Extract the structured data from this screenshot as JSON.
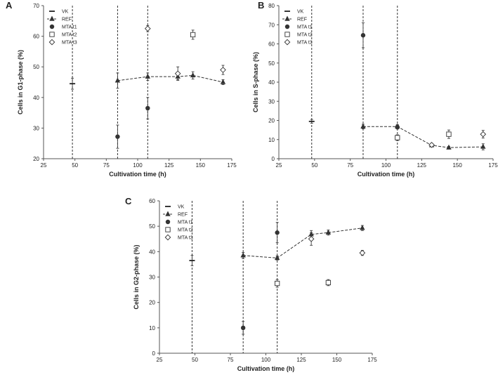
{
  "chart_data": [
    {
      "panel": "A",
      "type": "scatter",
      "xlabel": "Cultivation time (h)",
      "ylabel": "Cells in G1-phase (%)",
      "xlim": [
        25,
        175
      ],
      "ylim": [
        20,
        70
      ],
      "xticks": [
        25,
        50,
        75,
        100,
        125,
        150,
        175
      ],
      "yticks": [
        20,
        30,
        40,
        50,
        60,
        70
      ],
      "vlines": [
        48,
        84,
        108
      ],
      "legend_position": "top-left",
      "series": [
        {
          "name": "VK",
          "marker": "dash",
          "points": [
            {
              "x": 48,
              "y": 44.5,
              "err": 1.8
            }
          ]
        },
        {
          "name": "REF",
          "marker": "triangle",
          "line": true,
          "points": [
            {
              "x": 84,
              "y": 45.5,
              "err": 2.5
            },
            {
              "x": 108,
              "y": 46.8,
              "err": 1.2
            },
            {
              "x": 132,
              "y": 46.8,
              "err": 1.0
            },
            {
              "x": 144,
              "y": 47.2,
              "err": 1.2
            },
            {
              "x": 168,
              "y": 45.0,
              "err": 0.8
            }
          ]
        },
        {
          "name": "MTA t1",
          "marker": "circle",
          "points": [
            {
              "x": 84,
              "y": 27.2,
              "err": 3.8
            },
            {
              "x": 108,
              "y": 36.5,
              "err": 3.5
            }
          ]
        },
        {
          "name": "MTA t2",
          "marker": "square",
          "points": [
            {
              "x": 144,
              "y": 60.5,
              "err": 1.5
            }
          ]
        },
        {
          "name": "MTA t3",
          "marker": "diamond",
          "points": [
            {
              "x": 108,
              "y": 62.5,
              "err": 1.0
            },
            {
              "x": 132,
              "y": 47.8,
              "err": 2.2
            },
            {
              "x": 168,
              "y": 49.0,
              "err": 1.5
            }
          ]
        }
      ]
    },
    {
      "panel": "B",
      "type": "scatter",
      "xlabel": "Cultivation time (h)",
      "ylabel": "Cells in S-phase (%)",
      "xlim": [
        25,
        175
      ],
      "ylim": [
        0,
        80
      ],
      "xticks": [
        25,
        50,
        75,
        100,
        125,
        150,
        175
      ],
      "yticks": [
        0,
        10,
        20,
        30,
        40,
        50,
        60,
        70,
        80
      ],
      "vlines": [
        48,
        84,
        108
      ],
      "legend_position": "top-left",
      "series": [
        {
          "name": "VK",
          "marker": "dash",
          "points": [
            {
              "x": 48,
              "y": 19.5,
              "err": 1.0
            }
          ]
        },
        {
          "name": "REF",
          "marker": "triangle",
          "line": true,
          "points": [
            {
              "x": 84,
              "y": 16.8,
              "err": 1.2
            },
            {
              "x": 108,
              "y": 16.8,
              "err": 1.0
            },
            {
              "x": 132,
              "y": 7.0,
              "err": 0.8
            },
            {
              "x": 144,
              "y": 5.8,
              "err": 0.6
            },
            {
              "x": 168,
              "y": 6.2,
              "err": 1.6
            }
          ]
        },
        {
          "name": "MTA t1",
          "marker": "circle",
          "points": [
            {
              "x": 84,
              "y": 64.5,
              "err": 6.5
            },
            {
              "x": 108,
              "y": 16.5,
              "err": 1.0
            }
          ]
        },
        {
          "name": "MTA t2",
          "marker": "square",
          "points": [
            {
              "x": 108,
              "y": 11.0,
              "err": 1.5
            },
            {
              "x": 144,
              "y": 12.8,
              "err": 2.2
            }
          ]
        },
        {
          "name": "MTA t3",
          "marker": "diamond",
          "points": [
            {
              "x": 132,
              "y": 7.2,
              "err": 0.8
            },
            {
              "x": 168,
              "y": 12.8,
              "err": 2.0
            }
          ]
        }
      ]
    },
    {
      "panel": "C",
      "type": "scatter",
      "xlabel": "Cultivation time (h)",
      "ylabel": "Cells in G2-phase (%)",
      "xlim": [
        25,
        175
      ],
      "ylim": [
        0,
        60
      ],
      "xticks": [
        25,
        50,
        75,
        100,
        125,
        150,
        175
      ],
      "yticks": [
        0,
        10,
        20,
        30,
        40,
        50,
        60
      ],
      "vlines": [
        48,
        84,
        108
      ],
      "legend_position": "top-left",
      "series": [
        {
          "name": "VK",
          "marker": "dash",
          "points": [
            {
              "x": 48,
              "y": 36.5,
              "err": 2.0
            }
          ]
        },
        {
          "name": "REF",
          "marker": "triangle",
          "line": true,
          "points": [
            {
              "x": 84,
              "y": 38.5,
              "err": 1.2
            },
            {
              "x": 108,
              "y": 37.5,
              "err": 0.8
            },
            {
              "x": 132,
              "y": 46.8,
              "err": 1.5
            },
            {
              "x": 144,
              "y": 47.5,
              "err": 1.0
            },
            {
              "x": 168,
              "y": 49.3,
              "err": 1.0
            }
          ]
        },
        {
          "name": "MTA t1",
          "marker": "circle",
          "points": [
            {
              "x": 84,
              "y": 10.0,
              "err": 2.5
            },
            {
              "x": 108,
              "y": 47.5,
              "err": 4.0
            }
          ]
        },
        {
          "name": "MTA t2",
          "marker": "square",
          "points": [
            {
              "x": 108,
              "y": 27.5,
              "err": 1.5
            },
            {
              "x": 144,
              "y": 27.8,
              "err": 1.2
            }
          ]
        },
        {
          "name": "MTA t3",
          "marker": "diamond",
          "points": [
            {
              "x": 132,
              "y": 45.0,
              "err": 2.5
            },
            {
              "x": 168,
              "y": 39.5,
              "err": 1.0
            }
          ]
        }
      ]
    }
  ]
}
